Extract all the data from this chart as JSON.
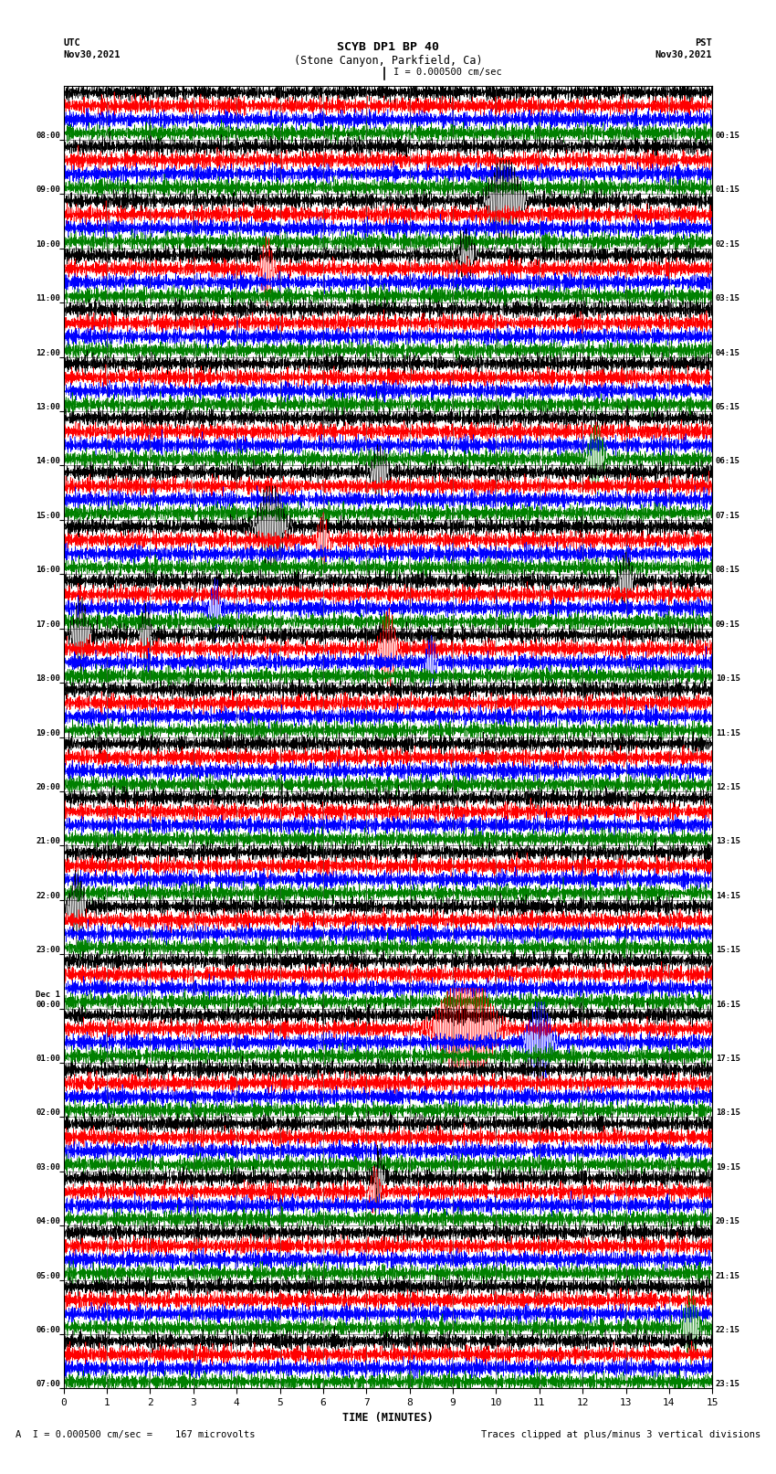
{
  "title_line1": "SCYB DP1 BP 40",
  "title_line2": "(Stone Canyon, Parkfield, Ca)",
  "scale_text": "I = 0.000500 cm/sec",
  "left_label_top": "UTC",
  "left_label_date": "Nov30,2021",
  "right_label_top": "PST",
  "right_label_date": "Nov30,2021",
  "bottom_note1": "A  I = 0.000500 cm/sec =    167 microvolts",
  "bottom_note2": "Traces clipped at plus/minus 3 vertical divisions",
  "xlabel": "TIME (MINUTES)",
  "xmin": 0,
  "xmax": 15,
  "xticks": [
    0,
    1,
    2,
    3,
    4,
    5,
    6,
    7,
    8,
    9,
    10,
    11,
    12,
    13,
    14,
    15
  ],
  "trace_colors": [
    "black",
    "red",
    "blue",
    "green"
  ],
  "background_color": "#ffffff",
  "rows": [
    {
      "utc": "08:00",
      "pst": "00:15"
    },
    {
      "utc": "09:00",
      "pst": "01:15"
    },
    {
      "utc": "10:00",
      "pst": "02:15"
    },
    {
      "utc": "11:00",
      "pst": "03:15"
    },
    {
      "utc": "12:00",
      "pst": "04:15"
    },
    {
      "utc": "13:00",
      "pst": "05:15"
    },
    {
      "utc": "14:00",
      "pst": "06:15"
    },
    {
      "utc": "15:00",
      "pst": "07:15"
    },
    {
      "utc": "16:00",
      "pst": "08:15"
    },
    {
      "utc": "17:00",
      "pst": "09:15"
    },
    {
      "utc": "18:00",
      "pst": "10:15"
    },
    {
      "utc": "19:00",
      "pst": "11:15"
    },
    {
      "utc": "20:00",
      "pst": "12:15"
    },
    {
      "utc": "21:00",
      "pst": "13:15"
    },
    {
      "utc": "22:00",
      "pst": "14:15"
    },
    {
      "utc": "23:00",
      "pst": "15:15"
    },
    {
      "utc": "Dec 1\n00:00",
      "pst": "16:15"
    },
    {
      "utc": "01:00",
      "pst": "17:15"
    },
    {
      "utc": "02:00",
      "pst": "18:15"
    },
    {
      "utc": "03:00",
      "pst": "19:15"
    },
    {
      "utc": "04:00",
      "pst": "20:15"
    },
    {
      "utc": "05:00",
      "pst": "21:15"
    },
    {
      "utc": "06:00",
      "pst": "22:15"
    },
    {
      "utc": "07:00",
      "pst": "23:15"
    }
  ],
  "events": [
    {
      "row": 2,
      "trace": 0,
      "time": 10.2,
      "amp": 3.5,
      "dur": 0.6
    },
    {
      "row": 3,
      "trace": 1,
      "time": 4.7,
      "amp": 2.5,
      "dur": 0.25
    },
    {
      "row": 3,
      "trace": 0,
      "time": 9.3,
      "amp": 1.8,
      "dur": 0.3
    },
    {
      "row": 6,
      "trace": 3,
      "time": 12.3,
      "amp": 2.5,
      "dur": 0.3
    },
    {
      "row": 7,
      "trace": 0,
      "time": 7.3,
      "amp": 2.0,
      "dur": 0.3
    },
    {
      "row": 8,
      "trace": 0,
      "time": 4.8,
      "amp": 3.5,
      "dur": 0.5
    },
    {
      "row": 8,
      "trace": 1,
      "time": 6.0,
      "amp": 2.0,
      "dur": 0.2
    },
    {
      "row": 9,
      "trace": 2,
      "time": 3.5,
      "amp": 2.0,
      "dur": 0.2
    },
    {
      "row": 9,
      "trace": 0,
      "time": 13.0,
      "amp": 2.2,
      "dur": 0.25
    },
    {
      "row": 10,
      "trace": 0,
      "time": 0.4,
      "amp": 3.0,
      "dur": 0.3
    },
    {
      "row": 10,
      "trace": 0,
      "time": 1.9,
      "amp": 2.5,
      "dur": 0.2
    },
    {
      "row": 10,
      "trace": 1,
      "time": 7.5,
      "amp": 3.0,
      "dur": 0.3
    },
    {
      "row": 10,
      "trace": 2,
      "time": 8.5,
      "amp": 2.0,
      "dur": 0.2
    },
    {
      "row": 15,
      "trace": 0,
      "time": 0.3,
      "amp": 2.5,
      "dur": 0.3
    },
    {
      "row": 17,
      "trace": 1,
      "time": 9.3,
      "amp": 5.0,
      "dur": 1.0
    },
    {
      "row": 17,
      "trace": 2,
      "time": 11.0,
      "amp": 3.0,
      "dur": 0.5
    },
    {
      "row": 20,
      "trace": 1,
      "time": 7.2,
      "amp": 2.0,
      "dur": 0.2
    },
    {
      "row": 20,
      "trace": 0,
      "time": 7.3,
      "amp": 2.5,
      "dur": 0.15
    },
    {
      "row": 22,
      "trace": 3,
      "time": 14.5,
      "amp": 2.5,
      "dur": 0.3
    }
  ]
}
